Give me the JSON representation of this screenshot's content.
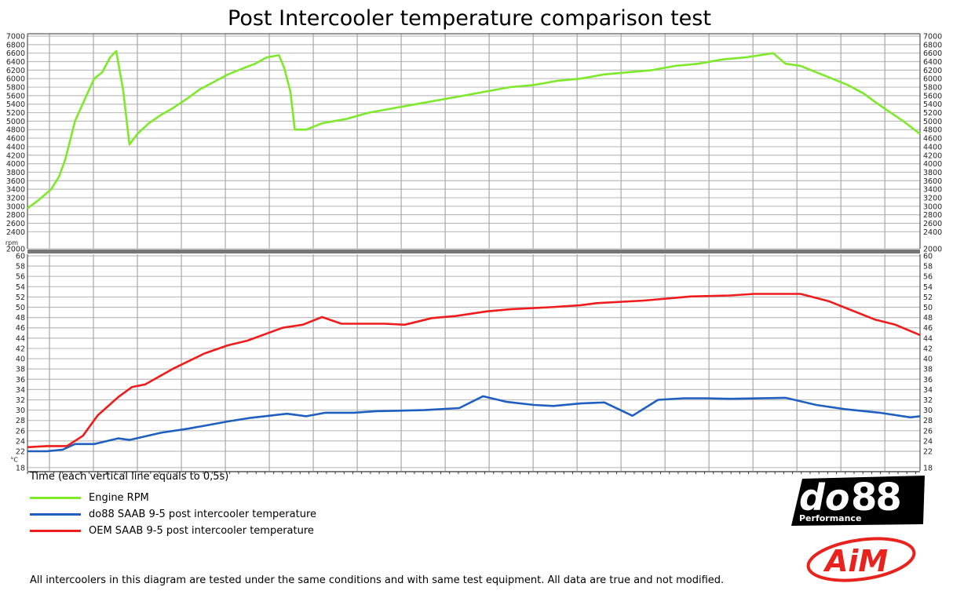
{
  "chart_data": {
    "type": "line",
    "title": "Post Intercooler temperature comparison test",
    "xlabel": "Time (each vertical line equals to 0,5s)",
    "xlim": [
      0,
      10.15
    ],
    "x_grid_step": 0.5,
    "grid": true,
    "legend_placement": "bottom-left",
    "panels": [
      {
        "unit": "rpm",
        "ylim": [
          2000,
          7000
        ],
        "ticks": [
          7000,
          6800,
          6600,
          6400,
          6200,
          6000,
          5800,
          5600,
          5400,
          5200,
          5000,
          4800,
          4600,
          4400,
          4200,
          4000,
          3800,
          3600,
          3400,
          3200,
          3000,
          2800,
          2600,
          2400,
          2000
        ],
        "series": [
          {
            "name": "Engine RPM",
            "color": "#7ee82a",
            "x": [
              0,
              0.13,
              0.27,
              0.36,
              0.43,
              0.54,
              0.67,
              0.76,
              0.85,
              0.94,
              1.01,
              1.09,
              1.16,
              1.25,
              1.38,
              1.52,
              1.65,
              1.83,
              1.96,
              2.1,
              2.28,
              2.46,
              2.59,
              2.72,
              2.86,
              2.92,
              2.99,
              3.04,
              3.17,
              3.35,
              3.62,
              3.88,
              4.15,
              4.42,
              4.69,
              4.96,
              5.22,
              5.49,
              5.76,
              6.03,
              6.29,
              6.56,
              6.83,
              7.1,
              7.37,
              7.63,
              7.9,
              8.17,
              8.48,
              8.62,
              8.79,
              8.97,
              9.15,
              9.33,
              9.51,
              9.64,
              9.78,
              9.96,
              10.15
            ],
            "y": [
              2950,
              3150,
              3400,
              3700,
              4100,
              5000,
              5600,
              6000,
              6150,
              6500,
              6650,
              5700,
              4450,
              4700,
              4950,
              5150,
              5300,
              5550,
              5750,
              5900,
              6100,
              6250,
              6350,
              6500,
              6550,
              6250,
              5700,
              4800,
              4800,
              4950,
              5050,
              5200,
              5300,
              5400,
              5500,
              5600,
              5700,
              5800,
              5850,
              5950,
              6000,
              6100,
              6150,
              6200,
              6300,
              6350,
              6450,
              6500,
              6600,
              6350,
              6300,
              6150,
              6000,
              5850,
              5650,
              5450,
              5250,
              5000,
              4700
            ]
          }
        ]
      },
      {
        "unit": "°C",
        "ylim": [
          18,
          60
        ],
        "ticks": [
          60,
          58,
          56,
          54,
          52,
          50,
          48,
          46,
          44,
          42,
          40,
          38,
          36,
          34,
          32,
          30,
          28,
          26,
          24,
          22,
          18
        ],
        "series": [
          {
            "name": "do88 SAAB 9-5 post intercooler temperature",
            "color": "#1f5fbf",
            "x": [
              0,
              0.22,
              0.4,
              0.54,
              0.76,
              1.03,
              1.16,
              1.52,
              1.83,
              2.28,
              2.54,
              2.95,
              3.17,
              3.39,
              3.71,
              3.97,
              4.51,
              4.91,
              5.18,
              5.45,
              5.76,
              5.98,
              6.29,
              6.56,
              6.88,
              7.17,
              7.46,
              7.72,
              7.99,
              8.62,
              8.97,
              9.29,
              9.69,
              10.04,
              10.15
            ],
            "y": [
              22,
              22,
              22.3,
              23.4,
              23.4,
              24.5,
              24.2,
              25.6,
              26.4,
              27.8,
              28.5,
              29.3,
              28.8,
              29.5,
              29.5,
              29.8,
              30,
              30.4,
              32.7,
              31.6,
              31,
              30.8,
              31.3,
              31.5,
              28.9,
              32,
              32.3,
              32.3,
              32.2,
              32.4,
              31,
              30.2,
              29.5,
              28.6,
              28.8
            ]
          },
          {
            "name": "OEM SAAB 9-5 post intercooler temperature",
            "color": "#ee1c1c",
            "x": [
              0,
              0.22,
              0.45,
              0.63,
              0.8,
              1.03,
              1.19,
              1.34,
              1.65,
              2.01,
              2.28,
              2.5,
              2.9,
              3.13,
              3.35,
              3.57,
              4.06,
              4.29,
              4.6,
              4.87,
              5.22,
              5.49,
              5.94,
              6.29,
              6.47,
              7.01,
              7.54,
              7.99,
              8.26,
              8.79,
              9.11,
              9.33,
              9.64,
              9.87,
              10.15
            ],
            "y": [
              22.8,
              23,
              23,
              25,
              29,
              32.5,
              34.5,
              35,
              38,
              41,
              42.6,
              43.5,
              46,
              46.6,
              48.1,
              46.8,
              46.8,
              46.6,
              47.9,
              48.3,
              49.2,
              49.6,
              50,
              50.4,
              50.8,
              51.3,
              52.1,
              52.3,
              52.6,
              52.6,
              51.2,
              49.7,
              47.6,
              46.6,
              44.6
            ]
          }
        ]
      }
    ],
    "legend": [
      {
        "label": "Engine RPM",
        "color": "#7ee82a"
      },
      {
        "label": "do88 SAAB 9-5 post intercooler temperature",
        "color": "#1f5fbf"
      },
      {
        "label": "OEM SAAB 9-5 post intercooler temperature",
        "color": "#ee1c1c"
      }
    ]
  },
  "logos": {
    "do88_main": "do88",
    "do88_sub": "Performance",
    "aim": "AiM"
  },
  "footer": "All intercoolers in this diagram are tested under the same conditions and with same test equipment. All data are true and not modified."
}
